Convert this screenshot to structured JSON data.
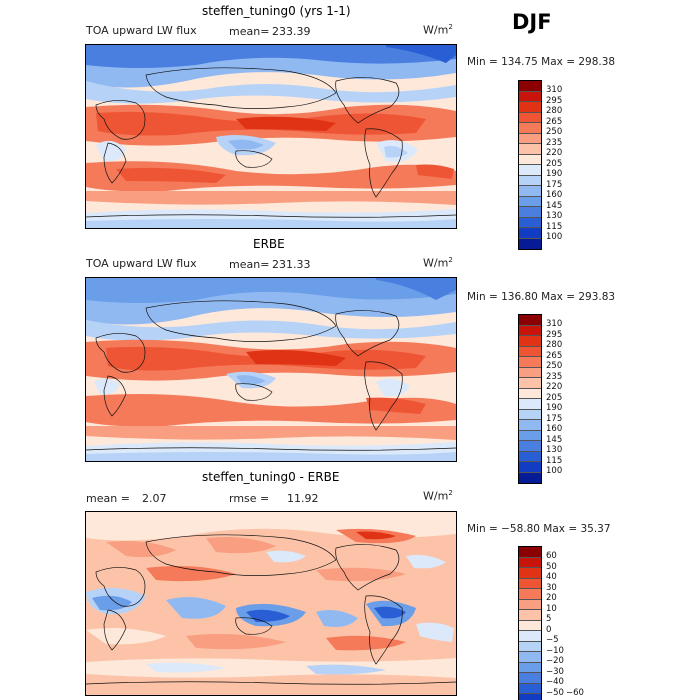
{
  "season": "DJF",
  "panels": [
    {
      "title": "steffen_tuning0 (yrs 1-1)",
      "field_label": "TOA upward LW flux",
      "stat_label": "mean=",
      "stat_value": "233.39",
      "units": "W/m",
      "units_exp": "2",
      "minmax": "Min = 134.75 Max = 298.38",
      "levels": [
        "310",
        "295",
        "280",
        "265",
        "250",
        "235",
        "220",
        "205",
        "190",
        "175",
        "160",
        "145",
        "130",
        "115",
        "100"
      ],
      "colors": [
        "#8b0000",
        "#c8140a",
        "#e03214",
        "#ee5535",
        "#f47a5a",
        "#f99e80",
        "#fcc3a8",
        "#fde8da",
        "#dbe9fb",
        "#b7d2f7",
        "#90b9f2",
        "#6a9ee9",
        "#4a7fe0",
        "#2a5ed5",
        "#123cc2",
        "#061c96"
      ]
    },
    {
      "title": "ERBE",
      "field_label": "TOA upward LW flux",
      "stat_label": "mean=",
      "stat_value": "231.33",
      "units": "W/m",
      "units_exp": "2",
      "minmax": "Min = 136.80 Max = 293.83",
      "levels": [
        "310",
        "295",
        "280",
        "265",
        "250",
        "235",
        "220",
        "205",
        "190",
        "175",
        "160",
        "145",
        "130",
        "115",
        "100"
      ],
      "colors": [
        "#8b0000",
        "#c8140a",
        "#e03214",
        "#ee5535",
        "#f47a5a",
        "#f99e80",
        "#fcc3a8",
        "#fde8da",
        "#dbe9fb",
        "#b7d2f7",
        "#90b9f2",
        "#6a9ee9",
        "#4a7fe0",
        "#2a5ed5",
        "#123cc2",
        "#061c96"
      ]
    },
    {
      "title": "steffen_tuning0 - ERBE",
      "mean_label": "mean =",
      "mean_value": "2.07",
      "rmse_label": "rmse =",
      "rmse_value": "11.92",
      "units": "W/m",
      "units_exp": "2",
      "minmax": "Min = −58.80 Max =  35.37",
      "levels": [
        "60",
        "50",
        "40",
        "30",
        "20",
        "10",
        "5",
        "0",
        "−5",
        "−10",
        "−20",
        "−30",
        "−40",
        "−50",
        "−60"
      ],
      "colors": [
        "#8b0000",
        "#c8140a",
        "#e03214",
        "#ee5535",
        "#f47a5a",
        "#f99e80",
        "#fcc3a8",
        "#fde8da",
        "#dbe9fb",
        "#b7d2f7",
        "#90b9f2",
        "#6a9ee9",
        "#4a7fe0",
        "#2a5ed5",
        "#123cc2",
        "#061c96"
      ]
    }
  ]
}
